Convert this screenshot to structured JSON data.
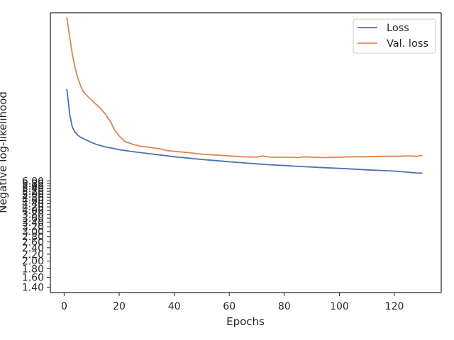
{
  "chart_data": {
    "type": "line",
    "xlabel": "Epochs",
    "ylabel": "Negative log-likelihood",
    "yscale": "log",
    "xlim": [
      -5,
      137
    ],
    "ylim": [
      1.3,
      60
    ],
    "xticks": [
      0,
      20,
      40,
      60,
      80,
      100,
      120
    ],
    "xtick_labels": [
      "0",
      "20",
      "40",
      "60",
      "80",
      "100",
      "120"
    ],
    "yticks": [
      1.4,
      1.6,
      1.8,
      2.0,
      2.2,
      2.4,
      2.6,
      2.8,
      3.0,
      3.2,
      3.4,
      3.6,
      3.8,
      4.0,
      4.2,
      4.4,
      4.6,
      4.8,
      5.0,
      5.2,
      5.4,
      5.6,
      5.8,
      6.0
    ],
    "ytick_labels": [
      "1.40",
      "1.60",
      "1.80",
      "2.00",
      "2.20",
      "2.40",
      "2.60",
      "2.80",
      "3.00",
      "3.20",
      "3.40",
      "3.60",
      "3.80",
      "4.00",
      "4.20",
      "4.40",
      "4.60",
      "4.80",
      "5.00",
      "5.20",
      "5.40",
      "5.60",
      "5.80",
      "6.00"
    ],
    "legend_position": "upper right",
    "grid": false,
    "series": [
      {
        "name": "Loss",
        "color": "#4c72b0",
        "points": [
          [
            1,
            21.0
          ],
          [
            2,
            15.0
          ],
          [
            3,
            12.5
          ],
          [
            4,
            11.7
          ],
          [
            5,
            11.2
          ],
          [
            6,
            10.9
          ],
          [
            8,
            10.5
          ],
          [
            10,
            10.15
          ],
          [
            12,
            9.85
          ],
          [
            15,
            9.55
          ],
          [
            20,
            9.2
          ],
          [
            25,
            8.95
          ],
          [
            30,
            8.75
          ],
          [
            35,
            8.55
          ],
          [
            40,
            8.35
          ],
          [
            45,
            8.2
          ],
          [
            50,
            8.05
          ],
          [
            55,
            7.92
          ],
          [
            60,
            7.8
          ],
          [
            65,
            7.68
          ],
          [
            70,
            7.58
          ],
          [
            75,
            7.48
          ],
          [
            80,
            7.4
          ],
          [
            85,
            7.32
          ],
          [
            90,
            7.25
          ],
          [
            95,
            7.18
          ],
          [
            100,
            7.12
          ],
          [
            105,
            7.05
          ],
          [
            110,
            6.98
          ],
          [
            115,
            6.92
          ],
          [
            120,
            6.86
          ],
          [
            125,
            6.76
          ],
          [
            128,
            6.68
          ],
          [
            130,
            6.68
          ]
        ]
      },
      {
        "name": "Val. loss",
        "color": "#dd8452",
        "points": [
          [
            1,
            56.0
          ],
          [
            2,
            43.0
          ],
          [
            3,
            34.0
          ],
          [
            4,
            28.0
          ],
          [
            5,
            24.5
          ],
          [
            6,
            22.0
          ],
          [
            7,
            20.3
          ],
          [
            9,
            18.8
          ],
          [
            11,
            17.5
          ],
          [
            13,
            16.3
          ],
          [
            15,
            15.0
          ],
          [
            16,
            14.1
          ],
          [
            17,
            13.4
          ],
          [
            18,
            12.3
          ],
          [
            20,
            11.1
          ],
          [
            22,
            10.3
          ],
          [
            25,
            9.9
          ],
          [
            28,
            9.6
          ],
          [
            30,
            9.55
          ],
          [
            33,
            9.4
          ],
          [
            35,
            9.3
          ],
          [
            37,
            9.1
          ],
          [
            40,
            9.0
          ],
          [
            43,
            8.9
          ],
          [
            46,
            8.8
          ],
          [
            50,
            8.65
          ],
          [
            55,
            8.55
          ],
          [
            60,
            8.45
          ],
          [
            65,
            8.35
          ],
          [
            70,
            8.3
          ],
          [
            72,
            8.45
          ],
          [
            75,
            8.3
          ],
          [
            80,
            8.3
          ],
          [
            85,
            8.25
          ],
          [
            87,
            8.35
          ],
          [
            90,
            8.3
          ],
          [
            95,
            8.25
          ],
          [
            100,
            8.3
          ],
          [
            105,
            8.35
          ],
          [
            110,
            8.35
          ],
          [
            115,
            8.4
          ],
          [
            120,
            8.4
          ],
          [
            125,
            8.45
          ],
          [
            128,
            8.4
          ],
          [
            130,
            8.5
          ]
        ]
      }
    ]
  }
}
